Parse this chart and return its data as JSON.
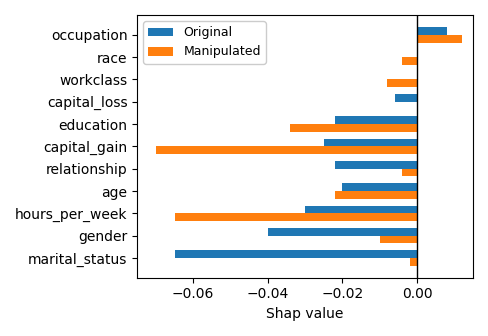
{
  "categories": [
    "marital_status",
    "gender",
    "hours_per_week",
    "age",
    "relationship",
    "capital_gain",
    "education",
    "capital_loss",
    "workclass",
    "race",
    "occupation"
  ],
  "original": [
    -0.065,
    -0.04,
    -0.03,
    -0.02,
    -0.022,
    -0.025,
    -0.022,
    -0.006,
    0.0,
    0.0,
    0.008
  ],
  "manipulated": [
    -0.002,
    -0.01,
    -0.065,
    -0.022,
    -0.004,
    -0.07,
    -0.034,
    0.0,
    -0.008,
    -0.004,
    0.012
  ],
  "original_color": "#1f77b4",
  "manipulated_color": "#ff7f0e",
  "xlabel": "Shap value",
  "xlim": [
    -0.075,
    0.015
  ],
  "bar_height": 0.35,
  "legend_labels": [
    "Original",
    "Manipulated"
  ]
}
